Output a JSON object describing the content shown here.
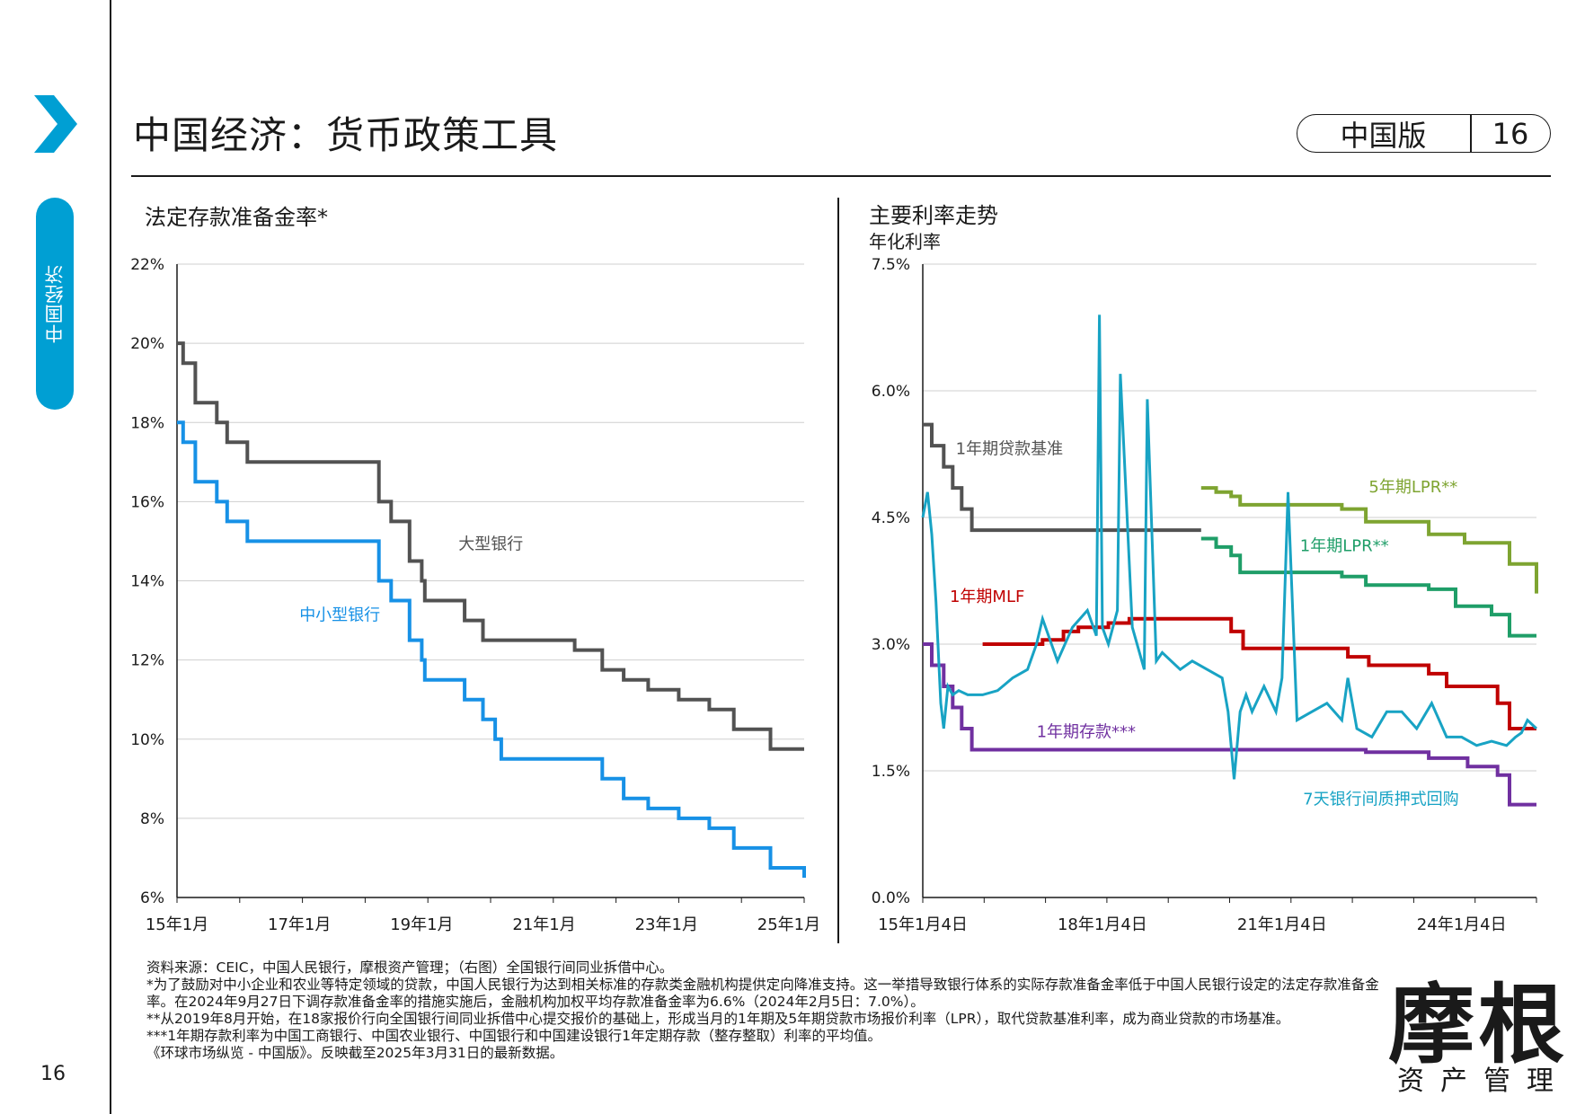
{
  "page": {
    "title": "中国经济：货币政策工具",
    "edition_label": "中国版",
    "page_number": "16",
    "footer_page_number": "16",
    "section_tab": "中国经济",
    "brand": {
      "name": "摩根",
      "sub": "资产管理"
    },
    "accent_color": "#009fd3"
  },
  "footnotes": [
    "资料来源：CEIC，中国人民银行，摩根资产管理；（右图）全国银行间同业拆借中心。",
    "*为了鼓励对中小企业和农业等特定领域的贷款，中国人民银行为达到相关标准的存款类金融机构提供定向降准支持。这一举措导致银行体系的实际存款准备金率低于中国人民银行设定的法定存款准备金率。在2024年9月27日下调存款准备金率的措施实施后，金融机构加权平均存款准备金率为6.6%（2024年2月5日：7.0%）。",
    "**从2019年8月开始，在18家报价行向全国银行间同业拆借中心提交报价的基础上，形成当月的1年期及5年期贷款市场报价利率（LPR），取代贷款基准利率，成为商业贷款的市场基准。",
    "***1年期存款利率为中国工商银行、中国农业银行、中国银行和中国建设银行1年定期存款（整存整取）利率的平均值。",
    "《环球市场纵览 - 中国版》。反映截至2025年3月31日的最新数据。"
  ],
  "chart_data": [
    {
      "type": "line",
      "step": true,
      "title": "法定存款准备金率*",
      "x_tick_labels": [
        "15年1月",
        "17年1月",
        "19年1月",
        "21年1月",
        "23年1月",
        "25年1月"
      ],
      "x_ticks": [
        2015.0,
        2017.0,
        2019.0,
        2021.0,
        2023.0,
        2025.0
      ],
      "xlim": [
        2015.0,
        2025.25
      ],
      "ylim": [
        6,
        22
      ],
      "y_ticks": [
        6,
        8,
        10,
        12,
        14,
        16,
        18,
        20,
        22
      ],
      "y_tick_labels": [
        "6%",
        "8%",
        "10%",
        "12%",
        "14%",
        "16%",
        "18%",
        "20%",
        "22%"
      ],
      "grid": true,
      "series": [
        {
          "name": "大型银行",
          "color": "#525252",
          "x": [
            2015.0,
            2015.1,
            2015.3,
            2015.65,
            2015.82,
            2016.15,
            2018.3,
            2018.5,
            2018.8,
            2019.0,
            2019.05,
            2019.7,
            2020.0,
            2021.5,
            2021.95,
            2022.3,
            2022.7,
            2023.2,
            2023.7,
            2024.1,
            2024.7,
            2025.25
          ],
          "y": [
            20,
            19.5,
            18.5,
            18,
            17.5,
            17,
            16,
            15.5,
            14.5,
            14,
            13.5,
            13,
            12.5,
            12.25,
            11.75,
            11.5,
            11.25,
            11,
            10.75,
            10.25,
            9.75,
            9.75
          ],
          "label": "大型银行"
        },
        {
          "name": "中小型银行",
          "color": "#1791e6",
          "x": [
            2015.0,
            2015.1,
            2015.3,
            2015.65,
            2015.82,
            2016.15,
            2018.3,
            2018.5,
            2018.8,
            2019.0,
            2019.05,
            2019.7,
            2020.0,
            2020.2,
            2020.3,
            2021.5,
            2021.95,
            2022.3,
            2022.7,
            2023.2,
            2023.7,
            2024.1,
            2024.7,
            2025.25
          ],
          "y": [
            18,
            17.5,
            16.5,
            16,
            15.5,
            15,
            14,
            13.5,
            12.5,
            12,
            11.5,
            11,
            10.5,
            10,
            9.5,
            9.5,
            9,
            8.5,
            8.25,
            8,
            7.75,
            7.25,
            6.75,
            6.5
          ],
          "label": "中小型银行"
        }
      ]
    },
    {
      "type": "line",
      "title": "主要利率走势",
      "ylabel": "年化利率",
      "x_tick_labels": [
        "15年1月4日",
        "18年1月4日",
        "21年1月4日",
        "24年1月4日"
      ],
      "x_ticks": [
        2015.0,
        2018.0,
        2021.0,
        2024.0
      ],
      "xlim": [
        2015.0,
        2025.25
      ],
      "ylim": [
        0,
        7.5
      ],
      "y_ticks": [
        0,
        1.5,
        3.0,
        4.5,
        6.0,
        7.5
      ],
      "y_tick_labels": [
        "0.0%",
        "1.5%",
        "3.0%",
        "4.5%",
        "6.0%",
        "7.5%"
      ],
      "grid": true,
      "series": [
        {
          "name": "1年期贷款基准",
          "color": "#525252",
          "step": true,
          "x": [
            2015.0,
            2015.15,
            2015.35,
            2015.5,
            2015.65,
            2015.82,
            2019.65
          ],
          "y": [
            5.6,
            5.35,
            5.1,
            4.85,
            4.6,
            4.35,
            4.35
          ],
          "label": "1年期贷款基准"
        },
        {
          "name": "5年期LPR**",
          "color": "#7ea431",
          "step": true,
          "x": [
            2019.65,
            2019.9,
            2020.15,
            2020.3,
            2022.0,
            2022.4,
            2023.45,
            2024.05,
            2024.8,
            2025.25
          ],
          "y": [
            4.85,
            4.8,
            4.75,
            4.65,
            4.6,
            4.45,
            4.3,
            4.2,
            3.95,
            3.6
          ],
          "label": "5年期LPR**"
        },
        {
          "name": "1年期LPR**",
          "color": "#1f9e68",
          "step": true,
          "x": [
            2019.65,
            2019.9,
            2020.15,
            2020.3,
            2022.0,
            2022.4,
            2023.45,
            2023.9,
            2024.5,
            2024.8,
            2025.25
          ],
          "y": [
            4.25,
            4.15,
            4.05,
            3.85,
            3.8,
            3.7,
            3.65,
            3.45,
            3.35,
            3.1,
            3.1
          ],
          "label": "1年期LPR**"
        },
        {
          "name": "1年期MLF",
          "color": "#c00000",
          "step": true,
          "x": [
            2016.0,
            2017.0,
            2017.35,
            2017.6,
            2018.1,
            2018.45,
            2020.15,
            2020.35,
            2022.1,
            2022.45,
            2023.45,
            2023.75,
            2024.6,
            2024.8,
            2025.25
          ],
          "y": [
            3.0,
            3.05,
            3.15,
            3.2,
            3.25,
            3.3,
            3.15,
            2.95,
            2.85,
            2.75,
            2.65,
            2.5,
            2.3,
            2.0,
            2.0
          ],
          "label": "1年期MLF"
        },
        {
          "name": "1年期存款***",
          "color": "#7030a0",
          "step": true,
          "x": [
            2015.0,
            2015.15,
            2015.35,
            2015.5,
            2015.65,
            2015.82,
            2022.4,
            2023.45,
            2024.1,
            2024.6,
            2024.8,
            2025.25
          ],
          "y": [
            3.0,
            2.75,
            2.5,
            2.25,
            2.0,
            1.75,
            1.72,
            1.65,
            1.55,
            1.45,
            1.1,
            1.1
          ],
          "label": "1年期存款***"
        },
        {
          "name": "7天银行间质押式回购",
          "color": "#18a3c4",
          "x": [
            2015.0,
            2015.08,
            2015.15,
            2015.22,
            2015.3,
            2015.35,
            2015.42,
            2015.5,
            2015.6,
            2015.75,
            2016.0,
            2016.25,
            2016.5,
            2016.75,
            2016.9,
            2017.0,
            2017.25,
            2017.5,
            2017.75,
            2017.9,
            2017.95,
            2018.0,
            2018.1,
            2018.25,
            2018.3,
            2018.5,
            2018.7,
            2018.75,
            2018.9,
            2019.0,
            2019.3,
            2019.5,
            2019.75,
            2020.0,
            2020.1,
            2020.2,
            2020.3,
            2020.4,
            2020.5,
            2020.7,
            2020.9,
            2021.0,
            2021.1,
            2021.25,
            2021.5,
            2021.75,
            2022.0,
            2022.1,
            2022.25,
            2022.5,
            2022.75,
            2023.0,
            2023.25,
            2023.5,
            2023.75,
            2024.0,
            2024.25,
            2024.5,
            2024.75,
            2024.9,
            2025.0,
            2025.1,
            2025.25
          ],
          "y": [
            4.5,
            4.8,
            4.3,
            3.5,
            2.3,
            2.0,
            2.5,
            2.4,
            2.45,
            2.4,
            2.4,
            2.45,
            2.6,
            2.7,
            3.0,
            3.3,
            2.8,
            3.2,
            3.4,
            3.1,
            6.9,
            3.2,
            3.0,
            3.4,
            6.2,
            3.2,
            2.7,
            5.9,
            2.8,
            2.9,
            2.7,
            2.8,
            2.7,
            2.6,
            2.2,
            1.4,
            2.2,
            2.4,
            2.2,
            2.5,
            2.2,
            2.6,
            4.8,
            2.1,
            2.2,
            2.3,
            2.1,
            2.6,
            2.0,
            1.9,
            2.2,
            2.2,
            2.0,
            2.3,
            1.9,
            1.9,
            1.8,
            1.85,
            1.8,
            1.9,
            1.95,
            2.1,
            2.0
          ],
          "label": "7天银行间质押式回购"
        }
      ]
    }
  ]
}
